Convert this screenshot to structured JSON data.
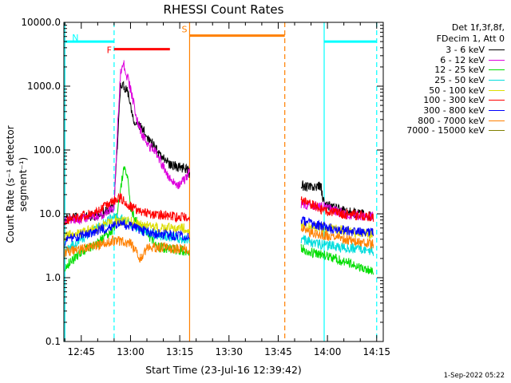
{
  "chart_data": {
    "type": "line",
    "title": "RHESSI Count Rates",
    "xlabel": "Start Time (23-Jul-16 12:39:42)",
    "ylabel": "Count Rate (s⁻¹ detector segment⁻¹)",
    "yscale": "log",
    "ylim": [
      0.1,
      10000
    ],
    "xlim": [
      "12:39:42",
      "14:17:00"
    ],
    "y_ticks": [
      "0.1",
      "1.0",
      "10.0",
      "100.0",
      "1000.0",
      "10000.0"
    ],
    "x_ticks": [
      "12:45",
      "13:00",
      "13:15",
      "13:30",
      "13:45",
      "14:00",
      "14:15"
    ],
    "grid": false,
    "legend_position": "right",
    "legend_header": [
      "Det 1f,3f,8f,",
      "FDecim 1, Att 0"
    ],
    "date_stamp": "1-Sep-2022 05:22",
    "series": [
      {
        "name": "3 - 6 keV",
        "color": "#000000",
        "points": [
          [
            "12:40",
            8.2
          ],
          [
            "12:50",
            9.5
          ],
          [
            "12:55",
            13
          ],
          [
            "12:56",
            120
          ],
          [
            "12:57",
            1100
          ],
          [
            "12:59",
            900
          ],
          [
            "13:01",
            300
          ],
          [
            "13:04",
            200
          ],
          [
            "13:06",
            140
          ],
          [
            "13:08",
            100
          ],
          [
            "13:10",
            75
          ],
          [
            "13:12",
            60
          ],
          [
            "13:14",
            55
          ],
          [
            "13:17",
            52
          ],
          [
            "13:18",
            42
          ],
          [
            "13:52",
            28
          ],
          [
            "13:55",
            26
          ],
          [
            "13:58",
            27
          ],
          [
            "13:59",
            14
          ],
          [
            "14:05",
            11
          ],
          [
            "14:10",
            10
          ],
          [
            "14:14",
            9
          ]
        ]
      },
      {
        "name": "6 - 12 keV",
        "color": "#dd00dd",
        "points": [
          [
            "12:40",
            8
          ],
          [
            "12:50",
            9
          ],
          [
            "12:55",
            13
          ],
          [
            "12:56",
            200
          ],
          [
            "12:57",
            1800
          ],
          [
            "12:58",
            2200
          ],
          [
            "13:00",
            900
          ],
          [
            "13:02",
            300
          ],
          [
            "13:04",
            150
          ],
          [
            "13:06",
            110
          ],
          [
            "13:08",
            90
          ],
          [
            "13:10",
            55
          ],
          [
            "13:12",
            35
          ],
          [
            "13:14",
            28
          ],
          [
            "13:16",
            32
          ],
          [
            "13:17",
            38
          ],
          [
            "13:18",
            48
          ],
          [
            "13:52",
            14
          ],
          [
            "13:58",
            13
          ],
          [
            "14:05",
            10
          ],
          [
            "14:14",
            9
          ]
        ]
      },
      {
        "name": "12 - 25 keV",
        "color": "#00dd00",
        "points": [
          [
            "12:40",
            1.5
          ],
          [
            "12:45",
            2.5
          ],
          [
            "12:50",
            3.5
          ],
          [
            "12:55",
            6
          ],
          [
            "12:56",
            10
          ],
          [
            "12:58",
            60
          ],
          [
            "12:59",
            40
          ],
          [
            "13:00",
            12
          ],
          [
            "13:03",
            6
          ],
          [
            "13:05",
            5
          ],
          [
            "13:08",
            3
          ],
          [
            "13:12",
            2.8
          ],
          [
            "13:18",
            2.6
          ],
          [
            "13:52",
            3
          ],
          [
            "13:55",
            2.5
          ],
          [
            "14:00",
            2.2
          ],
          [
            "14:05",
            1.8
          ],
          [
            "14:10",
            1.5
          ],
          [
            "14:14",
            1.2
          ]
        ]
      },
      {
        "name": "25 - 50 keV",
        "color": "#00dddd",
        "points": [
          [
            "12:40",
            2.5
          ],
          [
            "12:45",
            4
          ],
          [
            "12:50",
            6
          ],
          [
            "12:55",
            9
          ],
          [
            "12:58",
            8
          ],
          [
            "13:02",
            6
          ],
          [
            "13:06",
            5
          ],
          [
            "13:10",
            4.5
          ],
          [
            "13:14",
            4.2
          ],
          [
            "13:18",
            4
          ],
          [
            "13:52",
            4
          ],
          [
            "13:56",
            3.5
          ],
          [
            "14:00",
            3.2
          ],
          [
            "14:05",
            3
          ],
          [
            "14:10",
            2.8
          ],
          [
            "14:14",
            2.6
          ]
        ]
      },
      {
        "name": "50 - 100 keV",
        "color": "#dddd00",
        "points": [
          [
            "12:40",
            4.5
          ],
          [
            "12:45",
            5
          ],
          [
            "12:50",
            6
          ],
          [
            "12:55",
            8
          ],
          [
            "13:00",
            7.5
          ],
          [
            "13:05",
            6.5
          ],
          [
            "13:10",
            6
          ],
          [
            "13:15",
            6
          ],
          [
            "13:18",
            5.8
          ],
          [
            "13:52",
            6.5
          ],
          [
            "14:00",
            6
          ],
          [
            "14:05",
            5.5
          ],
          [
            "14:10",
            5
          ],
          [
            "14:14",
            4.8
          ]
        ]
      },
      {
        "name": "100 - 300 keV",
        "color": "#ff0000",
        "points": [
          [
            "12:40",
            8
          ],
          [
            "12:45",
            9
          ],
          [
            "12:50",
            11
          ],
          [
            "12:55",
            16
          ],
          [
            "12:57",
            18
          ],
          [
            "13:00",
            13
          ],
          [
            "13:03",
            11
          ],
          [
            "13:06",
            10
          ],
          [
            "13:10",
            9.5
          ],
          [
            "13:14",
            9
          ],
          [
            "13:18",
            8.8
          ],
          [
            "13:52",
            16
          ],
          [
            "13:55",
            14
          ],
          [
            "13:58",
            12
          ],
          [
            "14:00",
            11
          ],
          [
            "14:05",
            10
          ],
          [
            "14:10",
            9.5
          ],
          [
            "14:14",
            9
          ]
        ]
      },
      {
        "name": "300 - 800 keV",
        "color": "#0000ff",
        "points": [
          [
            "12:40",
            3.8
          ],
          [
            "12:45",
            4.5
          ],
          [
            "12:50",
            5.5
          ],
          [
            "12:55",
            6.5
          ],
          [
            "12:58",
            7
          ],
          [
            "13:00",
            6.5
          ],
          [
            "13:03",
            5.5
          ],
          [
            "13:06",
            5
          ],
          [
            "13:10",
            4.8
          ],
          [
            "13:14",
            4.6
          ],
          [
            "13:18",
            4.5
          ],
          [
            "13:52",
            8
          ],
          [
            "13:55",
            7
          ],
          [
            "14:00",
            6
          ],
          [
            "14:05",
            5.5
          ],
          [
            "14:10",
            5.2
          ],
          [
            "14:14",
            5
          ]
        ]
      },
      {
        "name": "800 - 7000 keV",
        "color": "#ff8000",
        "points": [
          [
            "12:40",
            2.5
          ],
          [
            "12:45",
            2.8
          ],
          [
            "12:50",
            3.2
          ],
          [
            "12:55",
            3.8
          ],
          [
            "13:00",
            3.5
          ],
          [
            "13:03",
            2
          ],
          [
            "13:05",
            3
          ],
          [
            "13:10",
            3
          ],
          [
            "13:14",
            2.8
          ],
          [
            "13:18",
            2.8
          ],
          [
            "13:52",
            6
          ],
          [
            "13:55",
            5
          ],
          [
            "14:00",
            4.5
          ],
          [
            "14:05",
            4
          ],
          [
            "14:10",
            3.6
          ],
          [
            "14:14",
            3.3
          ]
        ]
      },
      {
        "name": "7000 - 15000 keV",
        "color": "#808000",
        "points": []
      }
    ],
    "annotations": [
      {
        "label": "N",
        "color": "#00ffff",
        "style": "solid-bar",
        "x_start": "12:40",
        "x_end": "12:55",
        "y": 5000
      },
      {
        "label": "",
        "color": "#00ffff",
        "style": "solid-bar",
        "x_start": "13:59",
        "x_end": "14:15",
        "y": 5000
      },
      {
        "label": "F",
        "color": "#ff0000",
        "style": "solid-bar",
        "x_start": "12:55",
        "x_end": "13:12",
        "y": 3800
      },
      {
        "label": "S",
        "color": "#ff8000",
        "style": "solid-bar",
        "x_start": "13:18",
        "x_end": "13:47",
        "y": 6200
      }
    ],
    "vertical_markers": [
      {
        "x": "12:40",
        "color": "#00ffff",
        "style": "solid"
      },
      {
        "x": "12:55",
        "color": "#00ffff",
        "style": "dashed"
      },
      {
        "x": "13:18",
        "color": "#ff8000",
        "style": "solid"
      },
      {
        "x": "13:47",
        "color": "#ff8000",
        "style": "dashed"
      },
      {
        "x": "13:59",
        "color": "#00ffff",
        "style": "solid"
      },
      {
        "x": "14:15",
        "color": "#00ffff",
        "style": "dashed"
      }
    ]
  }
}
